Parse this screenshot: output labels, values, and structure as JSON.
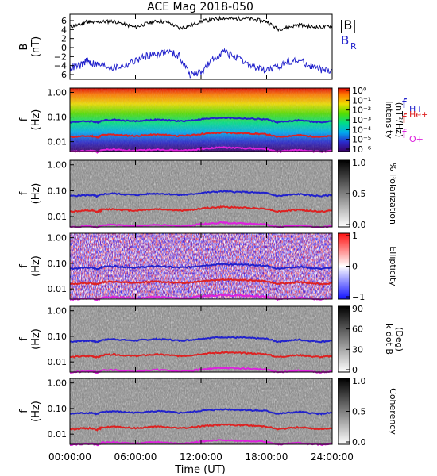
{
  "title": "ACE Mag 2018-050",
  "x_axis": {
    "label": "Time (UT)",
    "ticks": [
      "00:00:00",
      "06:00:00",
      "12:00:00",
      "18:00:00",
      "24:00:00"
    ]
  },
  "legend": {
    "field": {
      "abs_b": "|B|",
      "br": "B",
      "br_sub": "R"
    },
    "freqs": [
      {
        "base": "f",
        "sub": "H+",
        "color": "#2222cc"
      },
      {
        "base": "f",
        "sup": "He+",
        "color": "#dd2222"
      },
      {
        "base": "f",
        "sub": "O+",
        "color": "#dd22dd"
      }
    ]
  },
  "panels": [
    {
      "id": "field",
      "ylabel": "B",
      "ylabel2": "(nT)",
      "yticks": [
        "6",
        "4",
        "2",
        "0",
        "−2",
        "−4",
        "−6"
      ],
      "cmap": "none"
    },
    {
      "id": "intensity",
      "ylabel": "f",
      "ylabel2": "(Hz)",
      "yticks": [
        "1.00",
        "0.10",
        "0.01"
      ],
      "cmap": "rainbow",
      "cbar_label": "Intensity",
      "cbar_label2": "(nT²/Hz)",
      "cbar_ticks": [
        "10⁰",
        "10⁻¹",
        "10⁻²",
        "10⁻³",
        "10⁻⁴",
        "10⁻⁵",
        "10⁻⁶"
      ]
    },
    {
      "id": "polarization",
      "ylabel": "f",
      "ylabel2": "(Hz)",
      "yticks": [
        "1.00",
        "0.10",
        "0.01"
      ],
      "cmap": "gray",
      "cbar_label": "% Polarization",
      "cbar_label2": "",
      "cbar_ticks": [
        "1.0",
        "0.5",
        "0.0"
      ]
    },
    {
      "id": "ellipticity",
      "ylabel": "f",
      "ylabel2": "(Hz)",
      "yticks": [
        "1.00",
        "0.10",
        "0.01"
      ],
      "cmap": "bwr",
      "cbar_label": "Ellipticity",
      "cbar_label2": "",
      "cbar_ticks": [
        "1",
        "0",
        "−1"
      ]
    },
    {
      "id": "kdotb",
      "ylabel": "f",
      "ylabel2": "(Hz)",
      "yticks": [
        "1.00",
        "0.10",
        "0.01"
      ],
      "cmap": "gray",
      "cbar_label": "k dot B",
      "cbar_label2": "(Deg)",
      "cbar_ticks": [
        "90",
        "60",
        "30",
        "0"
      ]
    },
    {
      "id": "coherency",
      "ylabel": "f",
      "ylabel2": "(Hz)",
      "yticks": [
        "1.00",
        "0.10",
        "0.01"
      ],
      "cmap": "gray",
      "cbar_label": "Coherency",
      "cbar_label2": "",
      "cbar_ticks": [
        "1.0",
        "0.5",
        "0.0"
      ]
    }
  ],
  "chart_data": {
    "type": "line",
    "x_range_hours": [
      0,
      24
    ],
    "field_panel": {
      "ylim": [
        -7,
        7
      ],
      "series": [
        {
          "name": "|B|",
          "color": "#000000",
          "x": [
            0,
            1,
            1.5,
            2,
            3,
            4,
            5,
            6,
            7,
            8,
            9,
            10,
            11,
            12,
            13,
            14,
            15,
            16,
            17,
            18,
            19,
            20,
            21,
            22,
            23,
            24
          ],
          "y": [
            4.3,
            4.8,
            5.5,
            5.2,
            5.4,
            5.5,
            4.8,
            4.2,
            5.0,
            5.5,
            5.3,
            4.0,
            4.5,
            5.5,
            5.8,
            6.2,
            6.0,
            6.2,
            5.8,
            5.5,
            3.8,
            4.2,
            4.8,
            4.3,
            4.2,
            4.5
          ]
        },
        {
          "name": "B_R",
          "color": "#2222cc",
          "x": [
            0,
            1,
            1.5,
            2,
            3,
            4,
            5,
            6,
            7,
            8,
            9,
            10,
            11,
            12,
            13,
            14,
            15,
            16,
            17,
            18,
            19,
            20,
            21,
            22,
            23,
            24
          ],
          "y": [
            -4.5,
            -4.0,
            -3.0,
            -3.5,
            -4.0,
            -4.5,
            -4.0,
            -3.0,
            -2.0,
            -1.5,
            -1.0,
            -2.0,
            -6.0,
            -5.5,
            -3.0,
            -1.0,
            -2.0,
            -3.5,
            -4.5,
            -5.0,
            -4.5,
            -3.0,
            -3.0,
            -4.0,
            -5.0,
            -5.0
          ]
        }
      ]
    },
    "frequency_panels": {
      "yscale": "log",
      "ylim_hz": [
        0.004,
        1.5
      ],
      "series": [
        {
          "name": "fH+",
          "color": "#2222cc",
          "x": [
            0,
            1,
            2,
            2.5,
            3,
            4,
            5,
            6,
            7,
            8,
            9,
            10,
            11,
            12,
            13,
            14,
            15,
            16,
            17,
            18,
            19,
            20,
            21,
            22,
            23,
            24
          ],
          "y": [
            0.062,
            0.066,
            0.068,
            0.06,
            0.074,
            0.078,
            0.072,
            0.068,
            0.074,
            0.078,
            0.074,
            0.068,
            0.072,
            0.082,
            0.088,
            0.094,
            0.09,
            0.088,
            0.084,
            0.08,
            0.062,
            0.068,
            0.074,
            0.066,
            0.062,
            0.068
          ]
        },
        {
          "name": "fHe+",
          "color": "#dd2222",
          "x": [
            0,
            1,
            2,
            2.5,
            3,
            4,
            5,
            6,
            7,
            8,
            9,
            10,
            11,
            12,
            13,
            14,
            15,
            16,
            17,
            18,
            19,
            20,
            21,
            22,
            23,
            24
          ],
          "y": [
            0.0155,
            0.0165,
            0.017,
            0.015,
            0.0185,
            0.0195,
            0.018,
            0.017,
            0.0185,
            0.0195,
            0.0185,
            0.017,
            0.018,
            0.0205,
            0.022,
            0.0235,
            0.0225,
            0.022,
            0.021,
            0.02,
            0.0155,
            0.017,
            0.0185,
            0.0165,
            0.0155,
            0.017
          ]
        },
        {
          "name": "fO+",
          "color": "#dd22dd",
          "x": [
            0,
            1,
            2,
            2.5,
            3,
            4,
            5,
            6,
            7,
            8,
            9,
            10,
            11,
            12,
            13,
            14,
            15,
            16,
            17,
            18,
            19,
            20,
            21,
            22,
            23,
            24
          ],
          "y": [
            0.0039,
            0.0041,
            0.0043,
            0.0038,
            0.0046,
            0.0049,
            0.0045,
            0.0043,
            0.0046,
            0.0049,
            0.0046,
            0.0043,
            0.0045,
            0.0051,
            0.0055,
            0.0059,
            0.0056,
            0.0055,
            0.0053,
            0.005,
            0.0039,
            0.0043,
            0.0046,
            0.0041,
            0.0039,
            0.0043
          ]
        }
      ]
    }
  }
}
